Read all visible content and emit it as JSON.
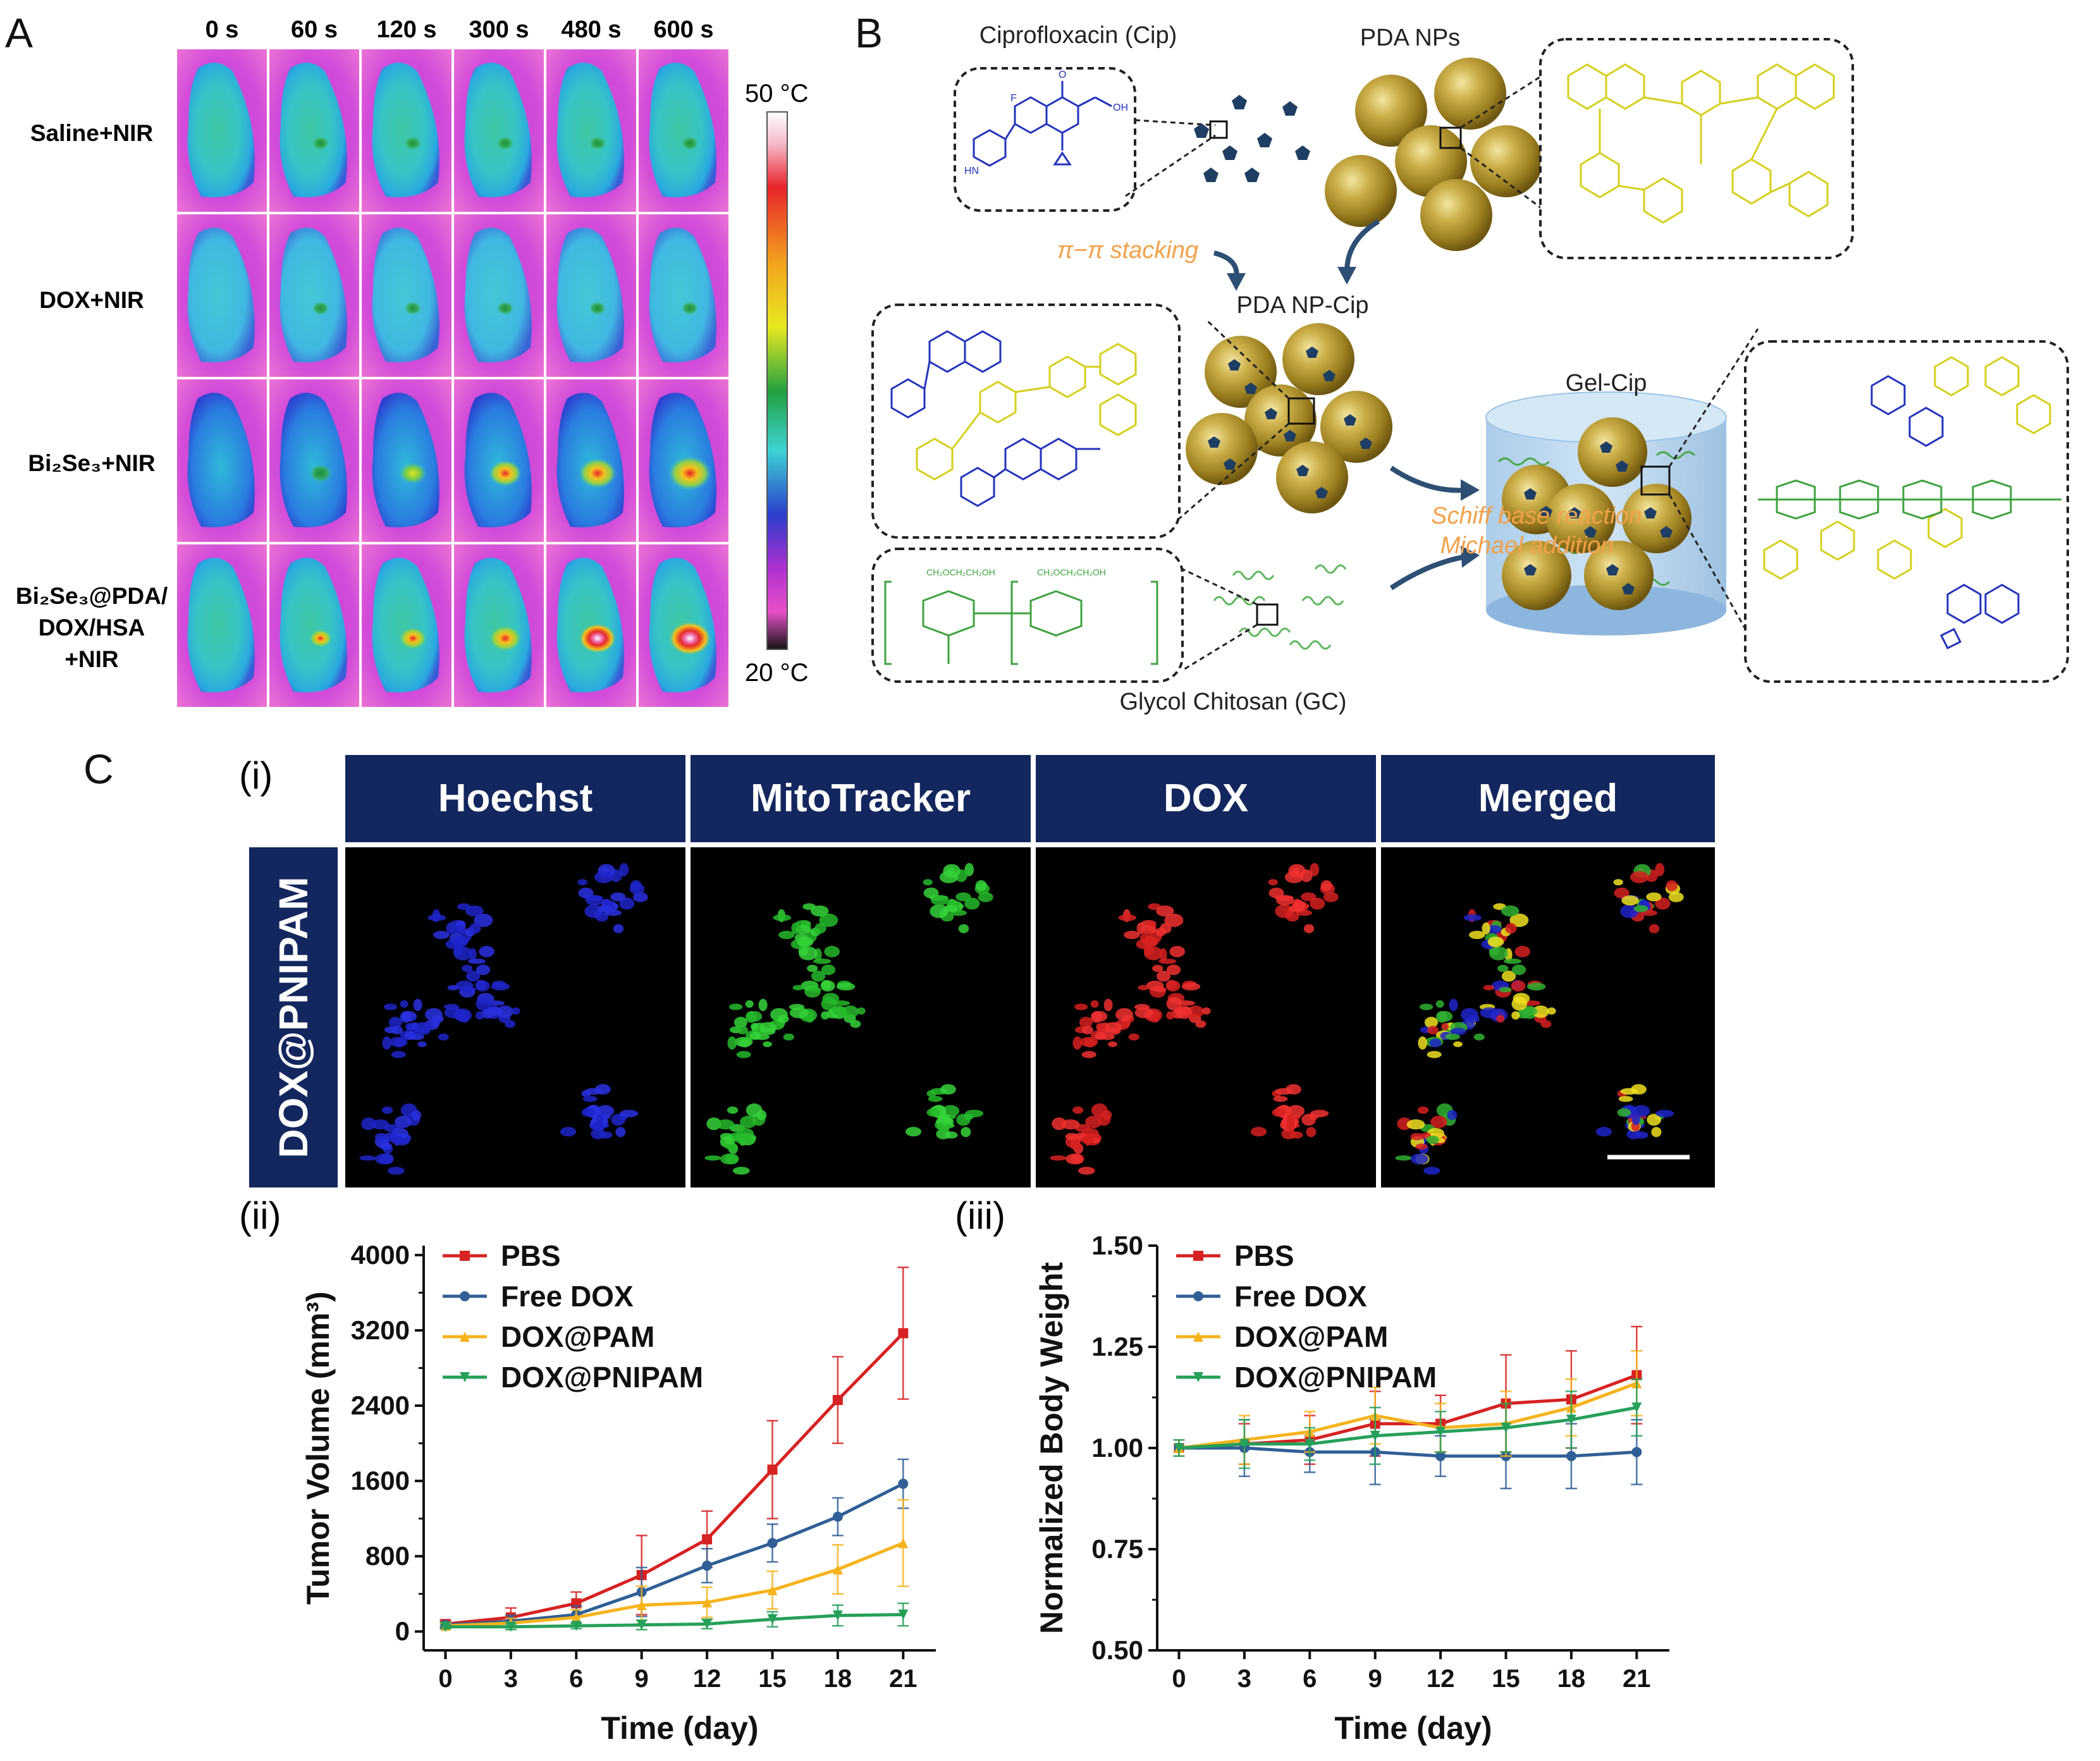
{
  "panel_a": {
    "letter": "A",
    "time_labels": [
      "0 s",
      "60 s",
      "120 s",
      "300 s",
      "480 s",
      "600 s"
    ],
    "rows": [
      {
        "label_lines": [
          "Saline+NIR"
        ]
      },
      {
        "label_lines": [
          "DOX+NIR"
        ]
      },
      {
        "label_lines": [
          "Bi₂Se₃+NIR"
        ]
      },
      {
        "label_lines": [
          "Bi₂Se₃@PDA/",
          "DOX/HSA",
          "+NIR"
        ]
      }
    ],
    "colorbar": {
      "max_label": "50 °C",
      "min_label": "20 °C"
    }
  },
  "panel_b": {
    "letter": "B",
    "cip_label": "Ciprofloxacin (Cip)",
    "pda_label": "PDA NPs",
    "stacking_label": "π−π stacking",
    "pda_cip_label": "PDA NP-Cip",
    "gel_label": "Gel-Cip",
    "reaction_lines": [
      "Schiff base reaction",
      "Michael addition"
    ],
    "gc_label": "Glycol Chitosan (GC)"
  },
  "panel_c": {
    "letter": "C",
    "sub_i": "(i)",
    "sub_ii": "(ii)",
    "sub_iii": "(iii)",
    "channel_headers": [
      "Hoechst",
      "MitoTracker",
      "DOX",
      "Merged"
    ],
    "row_label": "DOX@PNIPAM"
  },
  "colors": {
    "header_navy": "#13275e",
    "pbs": "#d62222",
    "free_dox": "#2f5f95",
    "dox_pam": "#f7b31c",
    "dox_pnipam": "#25a05a"
  },
  "chart_data": [
    {
      "type": "line",
      "title": "",
      "xlabel": "Time (day)",
      "ylabel": "Tumor Volume (mm³)",
      "x": [
        0,
        3,
        6,
        9,
        12,
        15,
        18,
        21
      ],
      "x_ticks": [
        "0",
        "3",
        "6",
        "9",
        "12",
        "15",
        "18",
        "21"
      ],
      "xlim": [
        -1,
        22.5
      ],
      "ylim": [
        -200,
        4100
      ],
      "y_ticks": [
        0,
        800,
        1600,
        2400,
        3200,
        4000
      ],
      "y_tick_labels": [
        "0",
        "800",
        "1600",
        "2400",
        "3200",
        "4000"
      ],
      "legend_position": "top-left",
      "series": [
        {
          "name": "PBS",
          "color": "#d62222",
          "marker": "square",
          "values": [
            80,
            150,
            300,
            600,
            980,
            1720,
            2460,
            3170
          ],
          "errors": [
            40,
            100,
            120,
            420,
            300,
            520,
            460,
            700
          ]
        },
        {
          "name": "Free DOX",
          "color": "#2f5f95",
          "marker": "circle",
          "values": [
            70,
            110,
            180,
            420,
            700,
            940,
            1220,
            1570
          ],
          "errors": [
            30,
            60,
            90,
            260,
            180,
            200,
            200,
            260
          ]
        },
        {
          "name": "DOX@PAM",
          "color": "#f7b31c",
          "marker": "triangle-up",
          "values": [
            60,
            90,
            150,
            280,
            310,
            440,
            660,
            940
          ],
          "errors": [
            30,
            50,
            80,
            200,
            160,
            200,
            260,
            460
          ]
        },
        {
          "name": "DOX@PNIPAM",
          "color": "#25a05a",
          "marker": "triangle-down",
          "values": [
            50,
            50,
            60,
            70,
            80,
            130,
            170,
            180
          ],
          "errors": [
            20,
            30,
            30,
            50,
            50,
            80,
            110,
            120
          ]
        }
      ]
    },
    {
      "type": "line",
      "title": "",
      "xlabel": "Time (day)",
      "ylabel": "Normalized Body Weight",
      "x": [
        0,
        3,
        6,
        9,
        12,
        15,
        18,
        21
      ],
      "x_ticks": [
        "0",
        "3",
        "6",
        "9",
        "12",
        "15",
        "18",
        "21"
      ],
      "xlim": [
        -1,
        22.5
      ],
      "ylim": [
        0.5,
        1.5
      ],
      "y_ticks": [
        0.5,
        0.75,
        1.0,
        1.25,
        1.5
      ],
      "y_tick_labels": [
        "0.50",
        "0.75",
        "1.00",
        "1.25",
        "1.50"
      ],
      "legend_position": "top-left",
      "series": [
        {
          "name": "PBS",
          "color": "#d62222",
          "marker": "square",
          "values": [
            1.0,
            1.01,
            1.02,
            1.06,
            1.06,
            1.11,
            1.12,
            1.18
          ],
          "errors": [
            0.02,
            0.05,
            0.06,
            0.08,
            0.07,
            0.12,
            0.12,
            0.12
          ]
        },
        {
          "name": "Free DOX",
          "color": "#2f5f95",
          "marker": "circle",
          "values": [
            1.0,
            1.0,
            0.99,
            0.99,
            0.98,
            0.98,
            0.98,
            0.99
          ],
          "errors": [
            0.02,
            0.07,
            0.05,
            0.08,
            0.05,
            0.08,
            0.08,
            0.08
          ]
        },
        {
          "name": "DOX@PAM",
          "color": "#f7b31c",
          "marker": "triangle-up",
          "values": [
            1.0,
            1.02,
            1.04,
            1.08,
            1.05,
            1.06,
            1.1,
            1.16
          ],
          "errors": [
            0.02,
            0.06,
            0.05,
            0.07,
            0.06,
            0.08,
            0.07,
            0.08
          ]
        },
        {
          "name": "DOX@PNIPAM",
          "color": "#25a05a",
          "marker": "triangle-down",
          "values": [
            1.0,
            1.01,
            1.01,
            1.03,
            1.04,
            1.05,
            1.07,
            1.1
          ],
          "errors": [
            0.02,
            0.06,
            0.04,
            0.07,
            0.05,
            0.06,
            0.07,
            0.07
          ]
        }
      ]
    }
  ]
}
